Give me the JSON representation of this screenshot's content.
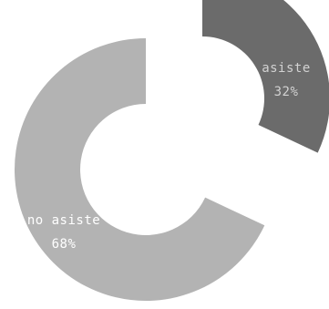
{
  "chart_data": {
    "type": "pie",
    "style": "donut-exploded",
    "slices": [
      {
        "label": "asiste",
        "value": 32,
        "value_label": "32%",
        "color": "#6b6b6b",
        "text_color": "#d2d2d2"
      },
      {
        "label": "no asiste",
        "value": 68,
        "value_label": "68%",
        "color": "#b3b3b3",
        "text_color": "#ffffff"
      }
    ]
  }
}
